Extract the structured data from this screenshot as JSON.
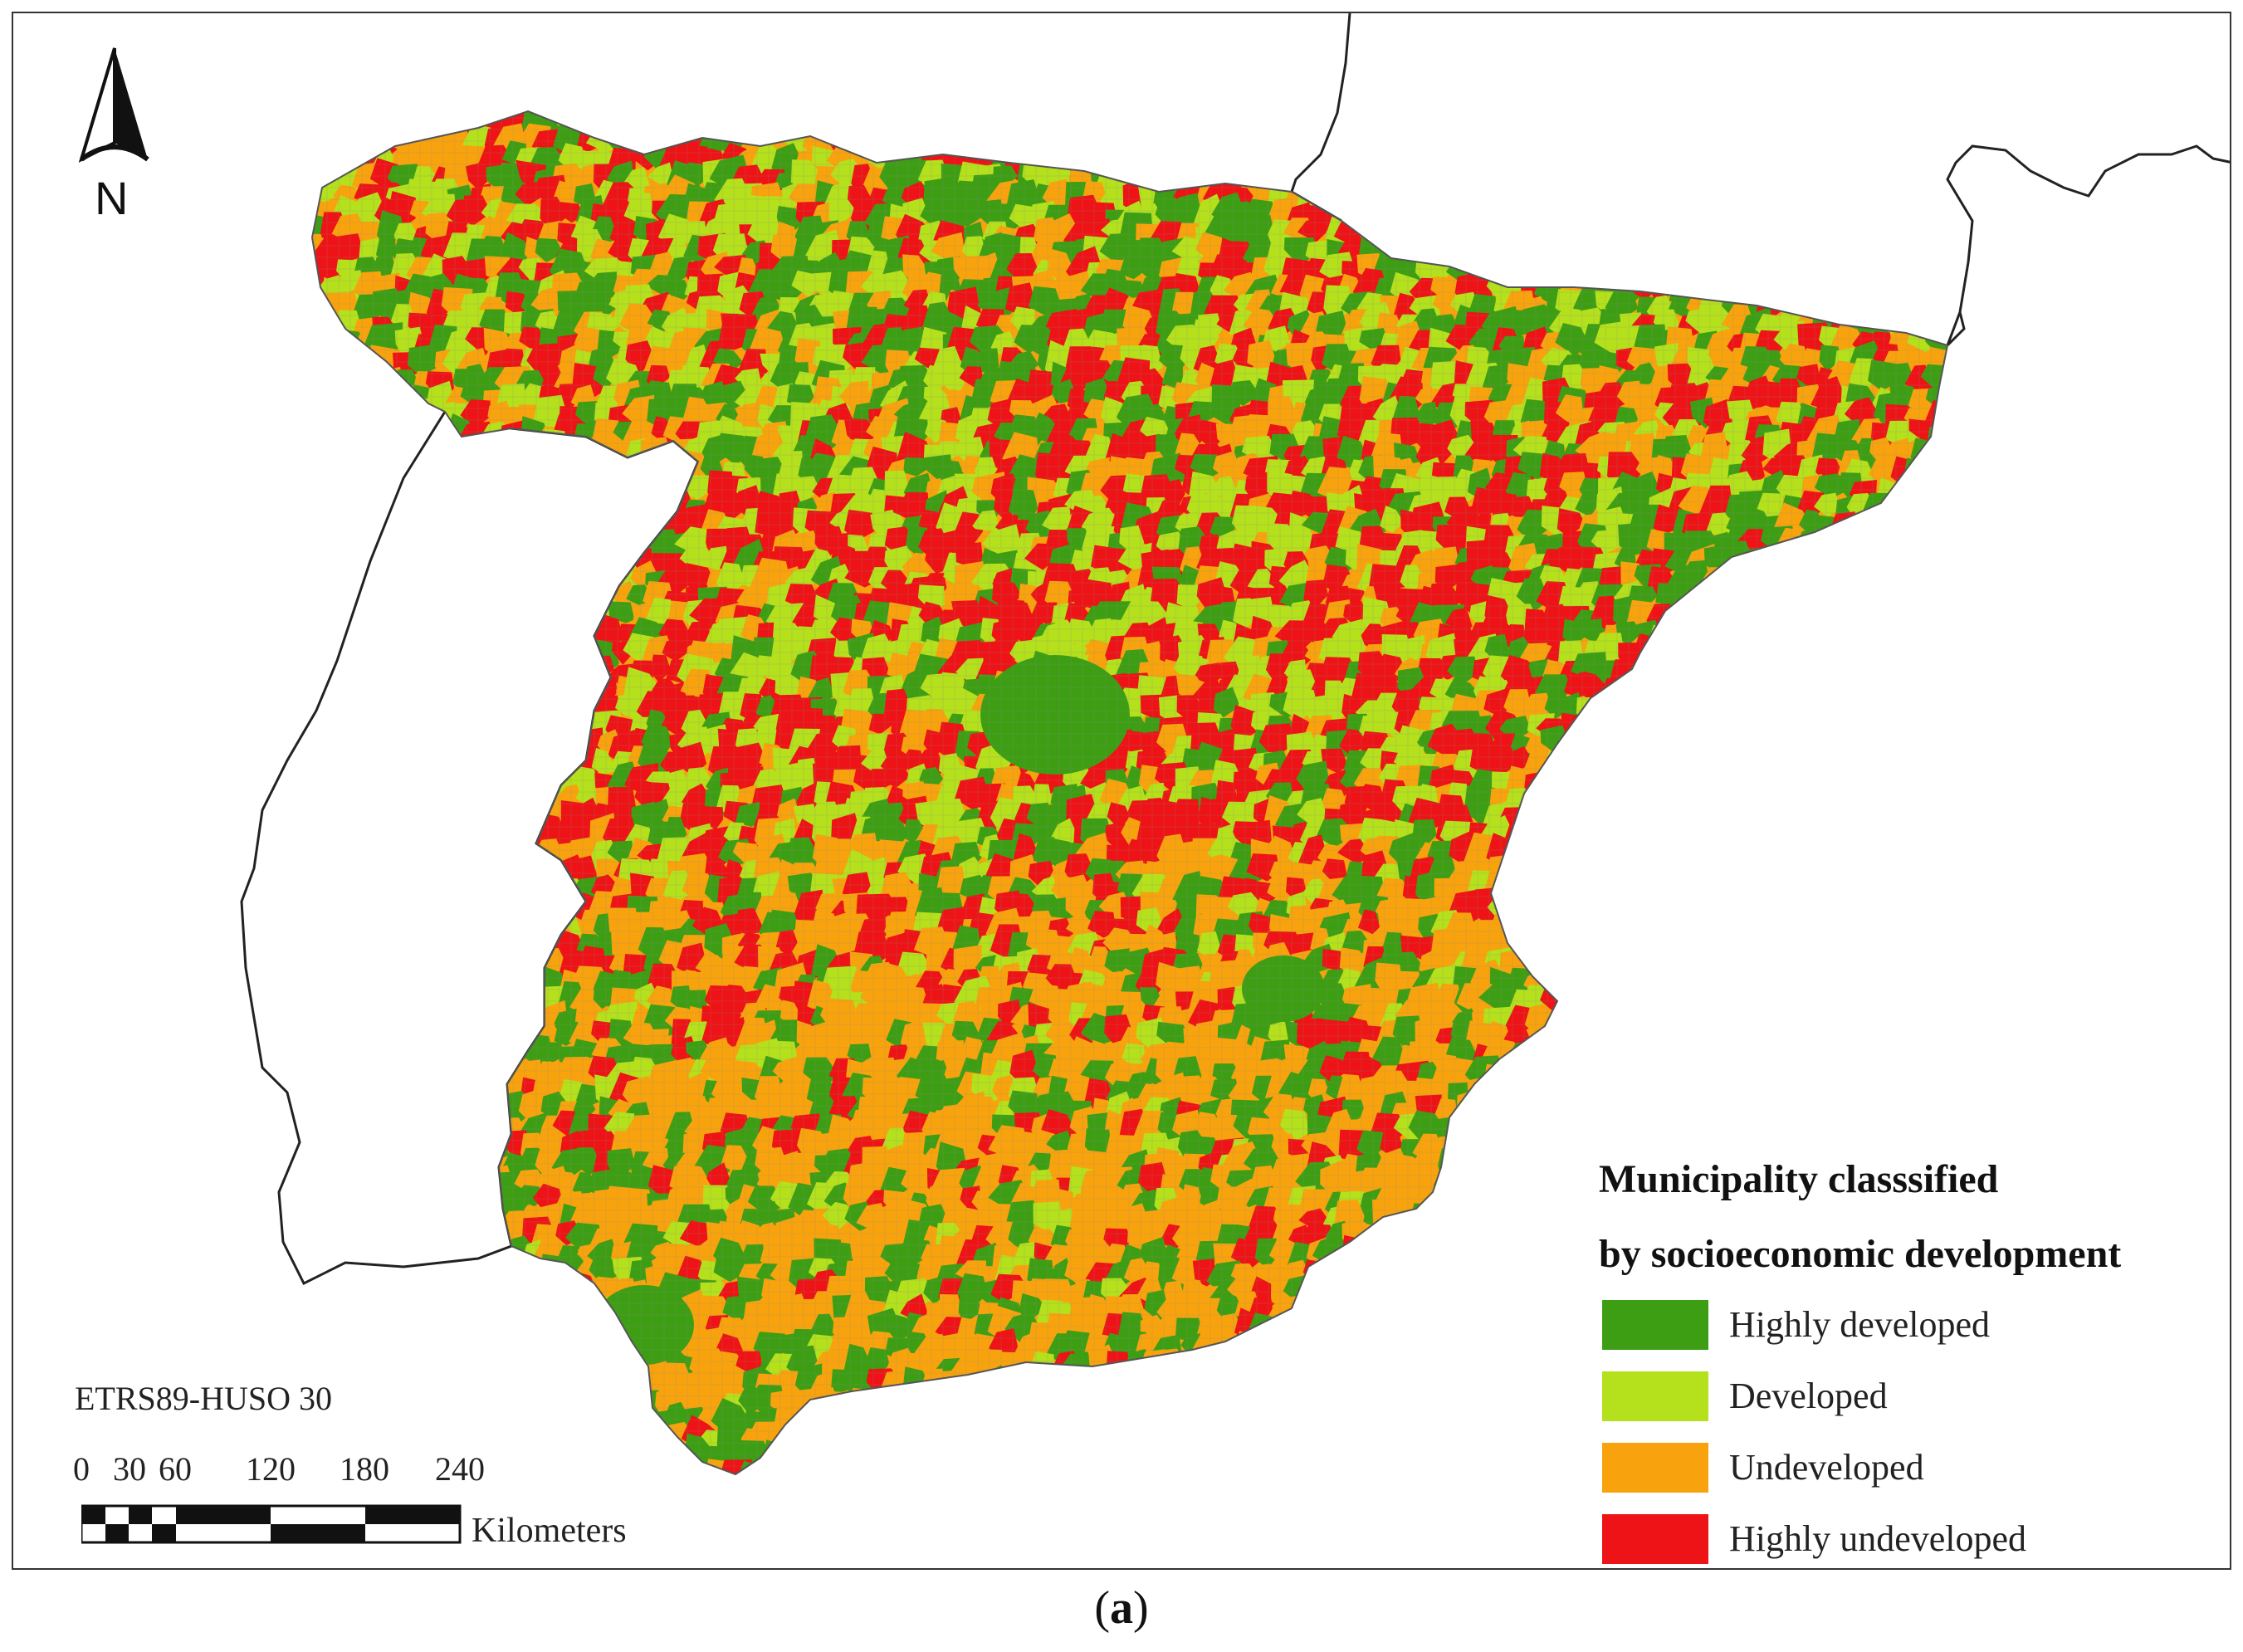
{
  "map": {
    "projection_label": "ETRS89-HUSO 30",
    "north_label": "N",
    "scale_bar": {
      "ticks": [
        "0",
        "30",
        "60",
        "120",
        "180",
        "240"
      ],
      "tick_values": [
        0,
        30,
        60,
        120,
        180,
        240
      ],
      "unit": "Kilometers"
    },
    "legend": {
      "title_line1": "Municipality classsified",
      "title_line2": "by socioeconomic development",
      "items": [
        {
          "label": "Highly developed",
          "color": "#3d9e14"
        },
        {
          "label": "Developed",
          "color": "#b4e01c"
        },
        {
          "label": "Undeveloped",
          "color": "#f8a30d"
        },
        {
          "label": "Highly undeveloped",
          "color": "#ee1316"
        }
      ]
    },
    "caption": {
      "open": "(",
      "letter": "a",
      "close": ")"
    }
  }
}
